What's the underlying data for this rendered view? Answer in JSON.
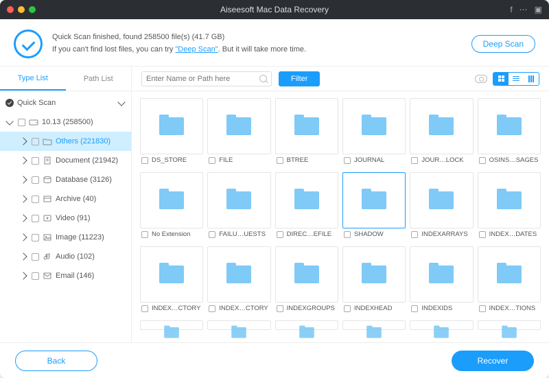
{
  "window": {
    "title": "Aiseesoft Mac Data Recovery"
  },
  "status": {
    "line1_a": "Quick Scan finished, found ",
    "line1_count": "258500",
    "line1_b": " file(s) (41.7 GB)",
    "line2_a": "If you can't find lost files, you can try ",
    "line2_link": "\"Deep Scan\"",
    "line2_b": ". But it will take more time.",
    "deep_scan_btn": "Deep Scan"
  },
  "colors": {
    "accent": "#1b9dfc",
    "folder": "#7fcaf7"
  },
  "sidebar": {
    "tabs": {
      "type_list": "Type List",
      "path_list": "Path List",
      "active": "type_list"
    },
    "root": {
      "label": "Quick Scan"
    },
    "drive": {
      "label": "10.13 (258500)"
    },
    "categories": [
      {
        "label": "Others (221830)",
        "icon": "folder",
        "selected": true
      },
      {
        "label": "Document (21942)",
        "icon": "document"
      },
      {
        "label": "Database (3126)",
        "icon": "database"
      },
      {
        "label": "Archive (40)",
        "icon": "archive"
      },
      {
        "label": "Video (91)",
        "icon": "video"
      },
      {
        "label": "Image (11223)",
        "icon": "image"
      },
      {
        "label": "Audio (102)",
        "icon": "audio"
      },
      {
        "label": "Email (146)",
        "icon": "email"
      }
    ]
  },
  "toolbar": {
    "search_placeholder": "Enter Name or Path here",
    "filter_btn": "Filter"
  },
  "grid": {
    "items": [
      {
        "label": "DS_STORE"
      },
      {
        "label": "FILE"
      },
      {
        "label": "BTREE"
      },
      {
        "label": "JOURNAL"
      },
      {
        "label": "JOUR…LOCK"
      },
      {
        "label": "OSINS…SAGES"
      },
      {
        "label": "No Extension"
      },
      {
        "label": "FAILU…UESTS"
      },
      {
        "label": "DIREC…EFILE"
      },
      {
        "label": "SHADOW",
        "selected": true
      },
      {
        "label": "INDEXARRAYS"
      },
      {
        "label": "INDEX…DATES"
      },
      {
        "label": "INDEX…CTORY"
      },
      {
        "label": "INDEX…CTORY"
      },
      {
        "label": "INDEXGROUPS"
      },
      {
        "label": "INDEXHEAD"
      },
      {
        "label": "INDEXIDS"
      },
      {
        "label": "INDEX…TIONS"
      }
    ]
  },
  "footer": {
    "back": "Back",
    "recover": "Recover"
  }
}
